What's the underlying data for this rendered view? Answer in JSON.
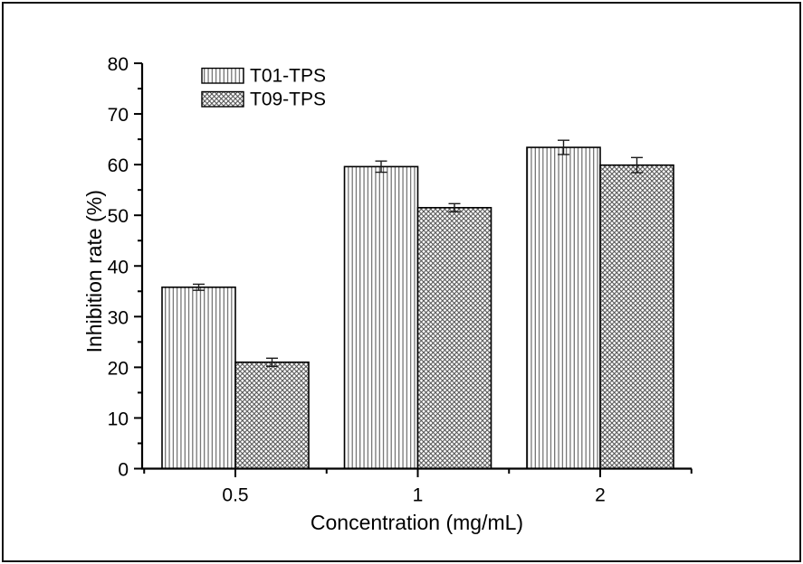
{
  "chart_data": {
    "type": "bar",
    "title": "",
    "xlabel": "Concentration (mg/mL)",
    "ylabel": "Inhibition rate (%)",
    "categories": [
      "0.5",
      "1",
      "2"
    ],
    "series": [
      {
        "name": "T01-TPS",
        "hatch": "vertical-lines",
        "values": [
          35.8,
          59.6,
          63.4
        ],
        "errors": [
          0.6,
          1.1,
          1.4
        ]
      },
      {
        "name": "T09-TPS",
        "hatch": "diagonal-crosshatch",
        "values": [
          21.0,
          51.5,
          59.9
        ],
        "errors": [
          0.8,
          0.8,
          1.5
        ]
      }
    ],
    "ylim": [
      0,
      80
    ],
    "yticks": [
      0,
      10,
      20,
      30,
      40,
      50,
      60,
      70,
      80
    ],
    "y_minor_step": 5,
    "grid": false,
    "legend_position": "top-left-inside",
    "error_bars": true,
    "colors": {
      "background": "#ffffff",
      "axis": "#000000",
      "bar_fill": "#ffffff",
      "bar_stroke": "#000000",
      "hatch_line": "#4d4d4d",
      "error_bar": "#1a1a1a"
    }
  }
}
